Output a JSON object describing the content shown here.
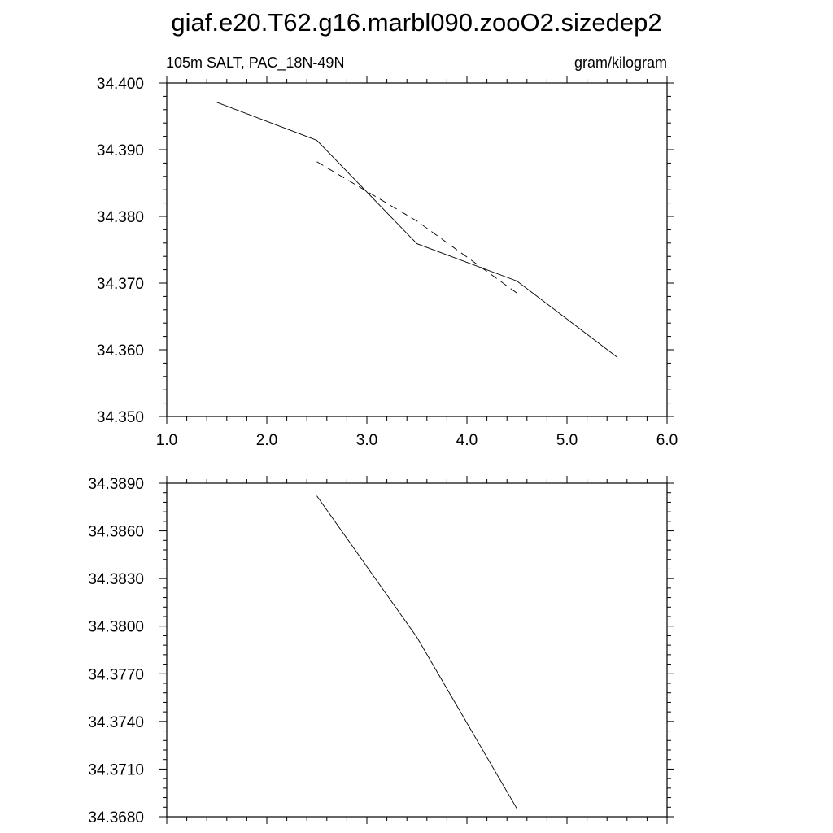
{
  "title": "giaf.e20.T62.g16.marbl090.zooO2.sizedep2",
  "chart_data": [
    {
      "type": "line",
      "subtitle_left": "105m SALT, PAC_18N-49N",
      "subtitle_right": "gram/kilogram",
      "xlim": [
        1.0,
        6.0
      ],
      "ylim": [
        34.35,
        34.4
      ],
      "xticks": [
        1.0,
        2.0,
        3.0,
        4.0,
        5.0,
        6.0
      ],
      "xtick_labels": [
        "1.0",
        "2.0",
        "3.0",
        "4.0",
        "5.0",
        "6.0"
      ],
      "yticks": [
        34.35,
        34.36,
        34.37,
        34.38,
        34.39,
        34.4
      ],
      "ytick_labels": [
        "34.350",
        "34.360",
        "34.370",
        "34.380",
        "34.390",
        "34.400"
      ],
      "grid": false,
      "series": [
        {
          "style": "solid",
          "x": [
            1.5,
            2.5,
            3.5,
            4.5,
            5.5
          ],
          "y": [
            34.3971,
            34.3914,
            34.3759,
            34.3703,
            34.3589
          ]
        },
        {
          "style": "dashed",
          "x": [
            2.5,
            3.5,
            4.5
          ],
          "y": [
            34.3882,
            34.3793,
            34.3685
          ]
        }
      ]
    },
    {
      "type": "line",
      "xlim": [
        1.0,
        6.0
      ],
      "ylim": [
        34.368,
        34.389
      ],
      "xticks": [
        1.0,
        2.0,
        3.0,
        4.0,
        5.0,
        6.0
      ],
      "yticks": [
        34.368,
        34.371,
        34.374,
        34.377,
        34.38,
        34.383,
        34.386,
        34.389
      ],
      "ytick_labels": [
        "34.3680",
        "34.3710",
        "34.3740",
        "34.3770",
        "34.3800",
        "34.3830",
        "34.3860",
        "34.3890"
      ],
      "grid": false,
      "series": [
        {
          "style": "solid",
          "x": [
            2.5,
            3.5,
            4.5
          ],
          "y": [
            34.3882,
            34.3793,
            34.3685
          ]
        }
      ]
    }
  ]
}
